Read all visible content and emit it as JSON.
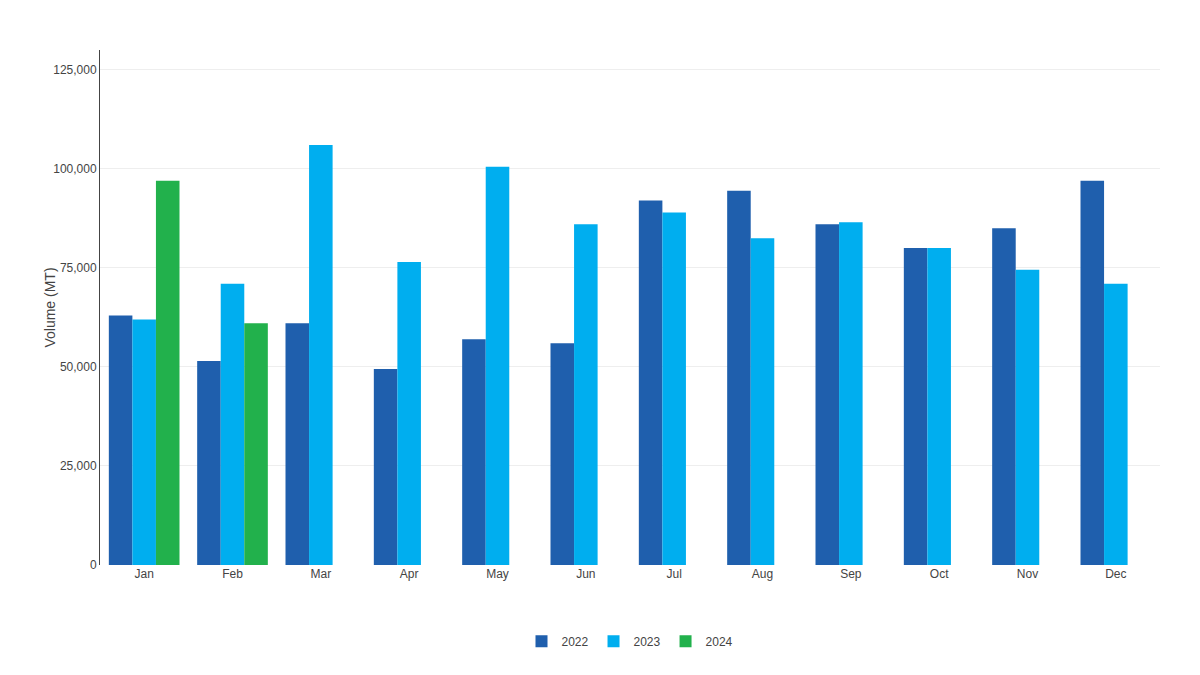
{
  "chart_data": {
    "type": "bar",
    "categories": [
      "Jan",
      "Feb",
      "Mar",
      "Apr",
      "May",
      "Jun",
      "Jul",
      "Aug",
      "Sep",
      "Oct",
      "Nov",
      "Dec"
    ],
    "series": [
      {
        "name": "2022",
        "color": "#1F5FAD",
        "values": [
          63000,
          51500,
          61000,
          49500,
          57000,
          56000,
          92000,
          94500,
          86000,
          80000,
          85000,
          97000
        ]
      },
      {
        "name": "2023",
        "color": "#00AEEF",
        "values": [
          62000,
          71000,
          106000,
          76500,
          100500,
          86000,
          89000,
          82500,
          86500,
          80000,
          74500,
          71000
        ]
      },
      {
        "name": "2024",
        "color": "#22B14C",
        "values": [
          97000,
          61000,
          null,
          null,
          null,
          null,
          null,
          null,
          null,
          null,
          null,
          null
        ]
      }
    ],
    "ylabel": "Volume (MT)",
    "ylim": [
      0,
      130000
    ],
    "yticks": [
      0,
      {
        "value": 25000,
        "label": "25,000"
      },
      {
        "value": 50000,
        "label": "50,000"
      },
      {
        "value": 75000,
        "label": "75,000"
      },
      {
        "value": 100000,
        "label": "100,000"
      },
      {
        "value": 125000,
        "label": "125,000"
      }
    ],
    "grid": true,
    "legend": "bottom"
  }
}
